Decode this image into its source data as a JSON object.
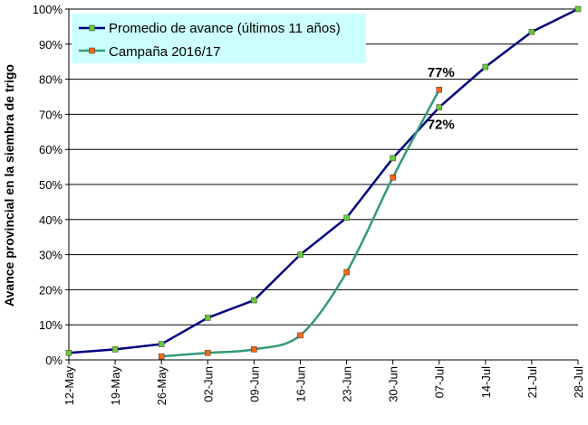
{
  "chart_data": {
    "type": "line",
    "ylabel": "Avance provincial en la siembra de trigo",
    "xlabel": "",
    "ylim": [
      0,
      100
    ],
    "yticks": [
      "0%",
      "10%",
      "20%",
      "30%",
      "40%",
      "50%",
      "60%",
      "70%",
      "80%",
      "90%",
      "100%"
    ],
    "categories": [
      "12-May",
      "19-May",
      "26-May",
      "02-Jun",
      "09-Jun",
      "16-Jun",
      "23-Jun",
      "30-Jun",
      "07-Jul",
      "14-Jul",
      "21-Jul",
      "28-Jul"
    ],
    "grid": "horizontal",
    "legend_position": "top-left",
    "series": [
      {
        "name": "Promedio de avance (últimos 11 años)",
        "line_color": "#000080",
        "marker_color": "#66cc33",
        "values": [
          2,
          3,
          4.5,
          12,
          17,
          30,
          40.5,
          57.5,
          72,
          83.5,
          93.5,
          100
        ]
      },
      {
        "name": "Campaña 2016/17",
        "line_color": "#339977",
        "marker_color": "#ff6611",
        "values": [
          null,
          null,
          1,
          2,
          3,
          7,
          25,
          52,
          77,
          null,
          null,
          null
        ]
      }
    ],
    "annotations": [
      {
        "text": "77%",
        "category": "07-Jul",
        "value": 77
      },
      {
        "text": "72%",
        "category": "07-Jul",
        "value": 72
      }
    ]
  }
}
